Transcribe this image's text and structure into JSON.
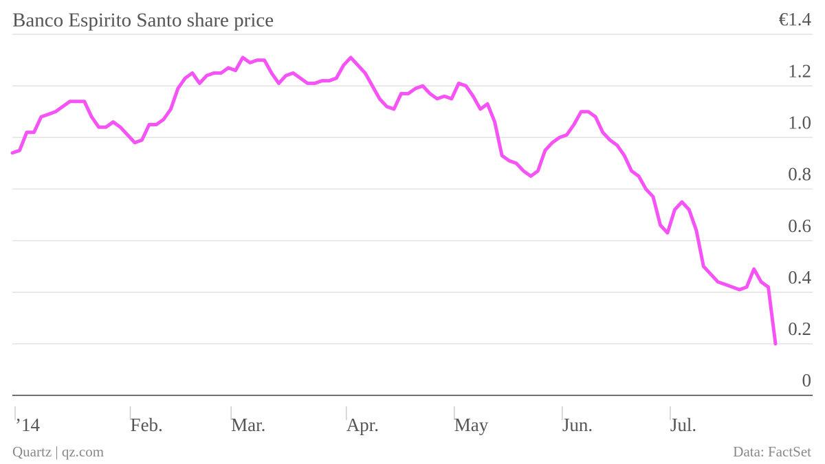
{
  "chart_data": {
    "type": "line",
    "title": "Banco Espirito Santo share price",
    "source_left": "Quartz | qz.com",
    "source_right": "Data: FactSet",
    "color": "#f553f5",
    "grid": true,
    "ylim": [
      0,
      1.4
    ],
    "yticks": [
      0,
      0.2,
      0.4,
      0.6,
      0.8,
      {
        "value": 1,
        "label": "1.0"
      },
      1.2,
      {
        "value": 1.4,
        "label": "€1.4"
      }
    ],
    "categories": [
      "’14",
      null,
      null,
      null,
      null,
      null,
      null,
      null,
      null,
      null,
      null,
      null,
      null,
      null,
      null,
      null,
      "Feb.",
      null,
      null,
      null,
      null,
      null,
      null,
      null,
      null,
      null,
      null,
      null,
      null,
      null,
      "Mar.",
      null,
      null,
      null,
      null,
      null,
      null,
      null,
      null,
      null,
      null,
      null,
      null,
      null,
      null,
      null,
      "Apr.",
      null,
      null,
      null,
      null,
      null,
      null,
      null,
      null,
      null,
      null,
      null,
      null,
      null,
      null,
      "May",
      null,
      null,
      null,
      null,
      null,
      null,
      null,
      null,
      null,
      null,
      null,
      null,
      null,
      null,
      "Jun.",
      null,
      null,
      null,
      null,
      null,
      null,
      null,
      null,
      null,
      null,
      null,
      null,
      null,
      null,
      "Jul.",
      null,
      null,
      null,
      null,
      null,
      null,
      null,
      null,
      null,
      null,
      null,
      null,
      null,
      null,
      null
    ],
    "values": [
      0.94,
      0.95,
      1.02,
      1.02,
      1.08,
      1.09,
      1.1,
      1.12,
      1.14,
      1.14,
      1.14,
      1.08,
      1.04,
      1.04,
      1.06,
      1.04,
      1.01,
      0.98,
      0.99,
      1.05,
      1.05,
      1.07,
      1.11,
      1.19,
      1.23,
      1.25,
      1.21,
      1.24,
      1.25,
      1.25,
      1.27,
      1.26,
      1.31,
      1.29,
      1.3,
      1.3,
      1.25,
      1.21,
      1.24,
      1.25,
      1.23,
      1.21,
      1.21,
      1.22,
      1.22,
      1.23,
      1.28,
      1.31,
      1.28,
      1.25,
      1.2,
      1.15,
      1.12,
      1.11,
      1.17,
      1.17,
      1.19,
      1.2,
      1.17,
      1.15,
      1.16,
      1.15,
      1.21,
      1.2,
      1.16,
      1.11,
      1.13,
      1.06,
      0.93,
      0.91,
      0.9,
      0.87,
      0.85,
      0.87,
      0.95,
      0.98,
      1.0,
      1.01,
      1.05,
      1.1,
      1.1,
      1.08,
      1.02,
      0.99,
      0.97,
      0.93,
      0.87,
      0.85,
      0.8,
      0.77,
      0.66,
      0.63,
      0.72,
      0.75,
      0.72,
      0.64,
      0.5,
      0.47,
      0.44,
      0.43,
      0.42,
      0.41,
      0.42,
      0.49,
      0.44,
      0.42,
      0.2
    ]
  }
}
